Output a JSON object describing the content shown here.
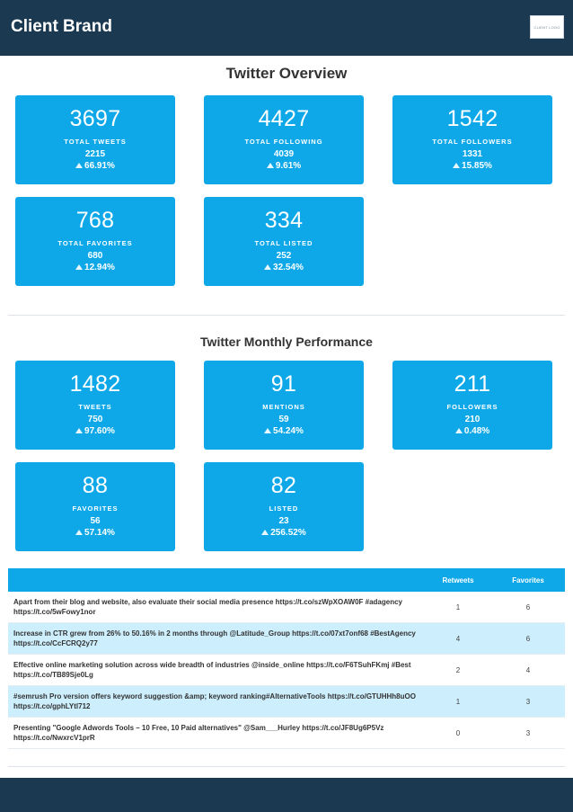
{
  "header": {
    "brand": "Client Brand",
    "logo_text": "CLIENT LOGO"
  },
  "overview": {
    "title": "Twitter Overview",
    "cards": [
      {
        "value": "3697",
        "label": "TOTAL TWEETS",
        "previous": "2215",
        "change": "66.91%"
      },
      {
        "value": "4427",
        "label": "TOTAL FOLLOWING",
        "previous": "4039",
        "change": "9.61%"
      },
      {
        "value": "1542",
        "label": "TOTAL FOLLOWERS",
        "previous": "1331",
        "change": "15.85%"
      },
      {
        "value": "768",
        "label": "TOTAL FAVORITES",
        "previous": "680",
        "change": "12.94%"
      },
      {
        "value": "334",
        "label": "TOTAL LISTED",
        "previous": "252",
        "change": "32.54%"
      }
    ]
  },
  "monthly": {
    "title": "Twitter Monthly Performance",
    "cards": [
      {
        "value": "1482",
        "label": "TWEETS",
        "previous": "750",
        "change": "97.60%"
      },
      {
        "value": "91",
        "label": "MENTIONS",
        "previous": "59",
        "change": "54.24%"
      },
      {
        "value": "211",
        "label": "FOLLOWERS",
        "previous": "210",
        "change": "0.48%"
      },
      {
        "value": "88",
        "label": "FAVORITES",
        "previous": "56",
        "change": "57.14%"
      },
      {
        "value": "82",
        "label": "LISTED",
        "previous": "23",
        "change": "256.52%"
      }
    ]
  },
  "table": {
    "headers": {
      "retweets": "Retweets",
      "favorites": "Favorites"
    },
    "rows": [
      {
        "tweet": "Apart from their blog and website, also evaluate their social media presence https://t.co/szWpXOAW0F #adagency https://t.co/5wFowy1nor",
        "retweets": "1",
        "favorites": "6"
      },
      {
        "tweet": "Increase in CTR grew from 26% to 50.16% in 2 months through @Latitude_Group https://t.co/07xt7onf68 #BestAgency https://t.co/CcFCRQ2y77",
        "retweets": "4",
        "favorites": "6"
      },
      {
        "tweet": "Effective online marketing solution across wide breadth of industries @inside_online https://t.co/F6TSuhFKmj #Best https://t.co/TB89Sje0Lg",
        "retweets": "2",
        "favorites": "4"
      },
      {
        "tweet": "#semrush Pro version offers keyword suggestion &amp; keyword ranking#AlternativeTools https://t.co/GTUHHh8uOO https://t.co/gphLYtl712",
        "retweets": "1",
        "favorites": "3"
      },
      {
        "tweet": "Presenting \"Google Adwords Tools – 10 Free, 10 Paid alternatives\" @Sam___Hurley https://t.co/JF8Ug6P5Vz https://t.co/NwxrcV1prR",
        "retweets": "0",
        "favorites": "3"
      }
    ]
  },
  "colors": {
    "header_bg": "#1b3a52",
    "card_bg": "#0ea8e8",
    "alt_row_bg": "#cdeefc"
  },
  "icons": {
    "change_indicator": "up-triangle-icon"
  }
}
